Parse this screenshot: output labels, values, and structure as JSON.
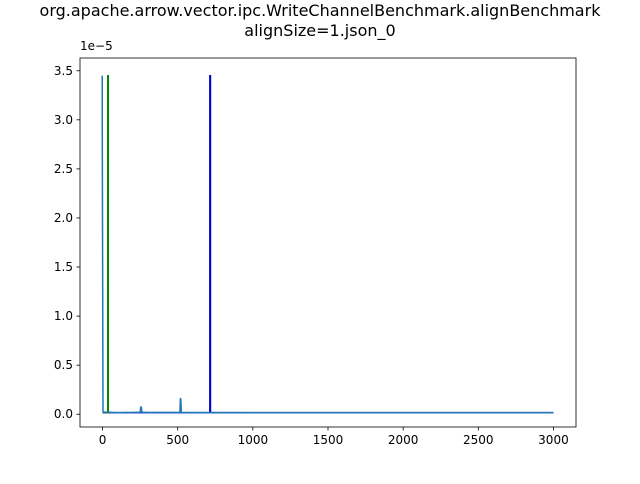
{
  "chart_data": {
    "type": "line",
    "title_lines": [
      "org.apache.arrow.vector.ipc.WriteChannelBenchmark.alignBenchmark",
      "alignSize=1.json_0"
    ],
    "y_offset_label": "1e−5",
    "xlabel": "",
    "ylabel": "",
    "xlim": [
      -150,
      3150
    ],
    "ylim": [
      -1.3e-06,
      3.63e-05
    ],
    "x_ticks": [
      0,
      500,
      1000,
      1500,
      2000,
      2500,
      3000
    ],
    "x_tick_labels": [
      "0",
      "500",
      "1000",
      "1500",
      "2000",
      "2500",
      "3000"
    ],
    "y_ticks": [
      0,
      5e-06,
      1e-05,
      1.5e-05,
      2e-05,
      2.5e-05,
      3e-05,
      3.5e-05
    ],
    "y_tick_labels": [
      "0.0",
      "0.5",
      "1.0",
      "1.5",
      "2.0",
      "2.5",
      "3.0",
      "3.5"
    ],
    "grid": false,
    "series": [
      {
        "color": "#0000cc",
        "x": [
          0,
          714,
          714,
          718,
          718,
          3000
        ],
        "y": [
          1.6e-07,
          1.6e-07,
          3.45e-05,
          3.45e-05,
          1.6e-07,
          1.6e-07
        ]
      },
      {
        "color": "#008000",
        "x": [
          0,
          35,
          35,
          38,
          38,
          60
        ],
        "y": [
          1.8e-07,
          1.8e-07,
          3.45e-05,
          3.45e-05,
          1.8e-07,
          1.8e-07
        ]
      },
      {
        "color": "#1f77b4",
        "x": [
          -2,
          -2,
          3,
          3,
          100,
          250,
          255,
          258,
          262,
          300,
          515,
          518,
          521,
          524,
          600,
          800,
          1000,
          1500,
          2000,
          2500,
          3000
        ],
        "y": [
          3.45e-05,
          3e-05,
          2.5e-07,
          2.3e-07,
          1.5e-07,
          2e-07,
          7.5e-07,
          7e-07,
          2e-07,
          1.8e-07,
          1.8e-07,
          1.6e-06,
          1.5e-06,
          1.8e-07,
          1.6e-07,
          1.6e-07,
          1.5e-07,
          1.5e-07,
          1.5e-07,
          1.5e-07,
          1.5e-07
        ]
      }
    ]
  }
}
